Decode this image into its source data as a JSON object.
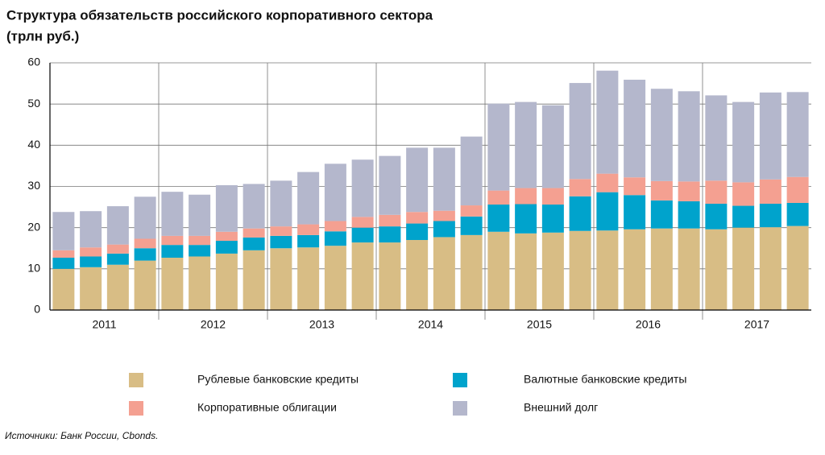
{
  "chart_data": {
    "type": "stacked-bar",
    "title": "Структура обязательств российского корпоративного сектора",
    "subtitle": "(трлн руб.)",
    "source": "Источники: Банк России, Cbonds.",
    "groups": [
      "2011",
      "2012",
      "2013",
      "2014",
      "2015",
      "2016",
      "2017"
    ],
    "categories": [
      null,
      null,
      null,
      null,
      null,
      null,
      null,
      null,
      null,
      null,
      null,
      null,
      null,
      null,
      null,
      null,
      null,
      null,
      null,
      null,
      null,
      null,
      null,
      null,
      null,
      null,
      null,
      null
    ],
    "series": [
      {
        "name": "Рублевые банковские кредиты",
        "color": "#d8bd85",
        "values": [
          10.0,
          10.4,
          11.0,
          12.0,
          12.7,
          13.0,
          13.7,
          14.5,
          15.0,
          15.2,
          15.6,
          16.4,
          16.4,
          17.0,
          17.7,
          18.2,
          19.0,
          18.6,
          18.8,
          19.2,
          19.3,
          19.6,
          19.8,
          19.8,
          19.6,
          20.0,
          20.1,
          20.4
        ]
      },
      {
        "name": "Валютные банковские кредиты",
        "color": "#00a3cc",
        "values": [
          2.7,
          2.6,
          2.7,
          3.0,
          3.1,
          2.8,
          3.1,
          3.1,
          3.0,
          3.0,
          3.5,
          3.6,
          3.9,
          4.0,
          3.9,
          4.5,
          6.6,
          7.1,
          6.8,
          8.4,
          9.3,
          8.3,
          6.8,
          6.6,
          6.2,
          5.3,
          5.7,
          5.6
        ]
      },
      {
        "name": "Корпоративные облигации",
        "color": "#f4a091",
        "values": [
          1.8,
          2.2,
          2.2,
          2.3,
          2.2,
          2.2,
          2.2,
          2.2,
          2.3,
          2.6,
          2.5,
          2.6,
          2.8,
          2.8,
          2.5,
          2.7,
          3.4,
          3.9,
          4.0,
          4.2,
          4.5,
          4.3,
          4.7,
          4.8,
          5.6,
          5.7,
          5.9,
          6.3
        ]
      },
      {
        "name": "Внешний долг",
        "color": "#b4b7cc",
        "values": [
          9.3,
          8.8,
          9.3,
          10.2,
          10.7,
          10.0,
          11.3,
          10.8,
          11.1,
          12.7,
          13.9,
          13.9,
          14.3,
          15.6,
          15.3,
          16.7,
          21.1,
          20.9,
          20.1,
          23.3,
          25.0,
          23.7,
          22.4,
          21.9,
          20.7,
          19.5,
          21.1,
          20.6
        ]
      }
    ],
    "ylim": [
      0,
      60
    ],
    "yticks": [
      0,
      10,
      20,
      30,
      40,
      50,
      60
    ],
    "grid": true
  }
}
